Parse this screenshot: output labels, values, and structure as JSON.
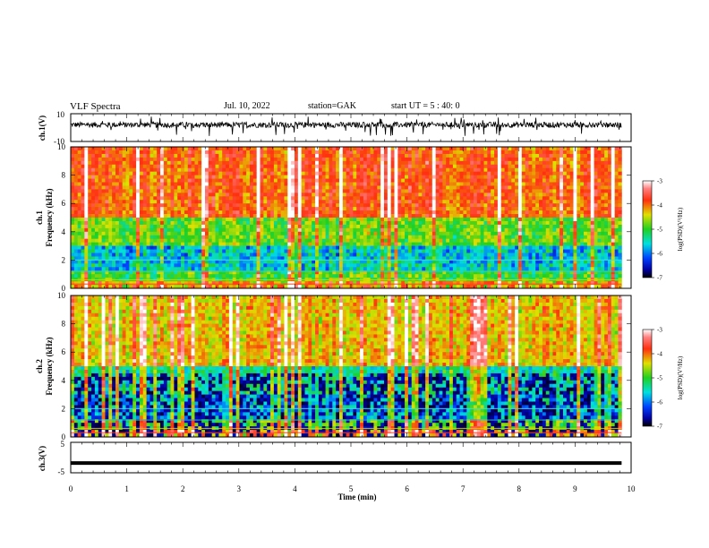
{
  "header": {
    "title": "VLF Spectra",
    "date": "Jul. 10, 2022",
    "station": "station=GAK",
    "start": "start UT = 5 : 40: 0"
  },
  "chart_data": [
    {
      "type": "line",
      "panel": "ch1_waveform",
      "ylabel": "ch.1(V)",
      "ylim": [
        -10,
        10
      ],
      "yticks": [
        "10",
        "-10"
      ],
      "xlim": [
        0,
        10
      ],
      "description_values": {
        "approx_mean": 2.0,
        "approx_range": [
          -10,
          8
        ]
      }
    },
    {
      "type": "heatmap",
      "panel": "ch1_spectrogram",
      "ylabel": "ch.1\nFrequency (kHz)",
      "ylim": [
        0,
        10
      ],
      "yticks": [
        "0",
        "2",
        "4",
        "6",
        "8",
        "10"
      ],
      "xlim": [
        0,
        10
      ],
      "data_extent_x": [
        0,
        9.83
      ],
      "colorbar": {
        "label": "log(PSD)(V²/Hz)",
        "ticks": [
          "-3",
          "-4",
          "-5",
          "-6",
          "-7"
        ],
        "range": [
          -7,
          -3
        ]
      }
    },
    {
      "type": "heatmap",
      "panel": "ch2_spectrogram",
      "ylabel": "ch.2\nFrequency (kHz)",
      "ylim": [
        0,
        10
      ],
      "yticks": [
        "0",
        "2",
        "4",
        "6",
        "8",
        "10"
      ],
      "xlim": [
        0,
        10
      ],
      "data_extent_x": [
        0,
        9.83
      ],
      "colorbar": {
        "label": "log(PSD)(V²/Hz)",
        "ticks": [
          "-3",
          "-4",
          "-5",
          "-6",
          "-7"
        ],
        "range": [
          -7,
          -3
        ]
      }
    },
    {
      "type": "line",
      "panel": "ch3_waveform",
      "ylabel": "ch.3(V)",
      "ylim": [
        -5,
        5
      ],
      "yticks": [
        "5",
        "-5"
      ],
      "xlim": [
        0,
        10
      ],
      "x_data": [
        0,
        9.83
      ],
      "y_data": [
        -1.8,
        -1.8
      ]
    }
  ],
  "xaxis": {
    "label": "Time (min)",
    "ticks": [
      "0",
      "1",
      "2",
      "3",
      "4",
      "5",
      "6",
      "7",
      "8",
      "9",
      "10"
    ]
  },
  "colorbar_ticks": [
    "-3",
    "-4",
    "-5",
    "-6",
    "-7"
  ],
  "colorbar_label": "log(PSD)(V²/Hz)"
}
